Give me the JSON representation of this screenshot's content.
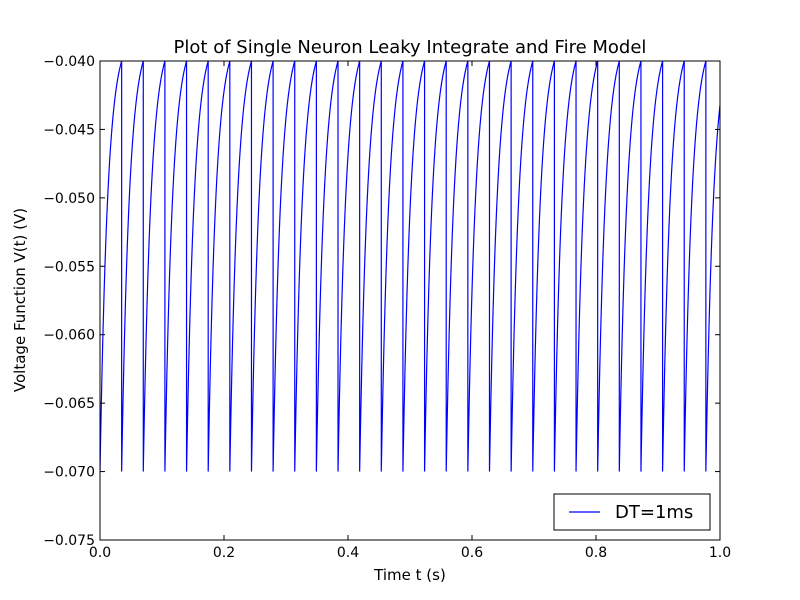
{
  "chart_data": {
    "type": "line",
    "title": "Plot of Single Neuron Leaky Integrate and Fire Model",
    "xlabel": "Time t (s)",
    "ylabel": "Voltage Function V(t) (V)",
    "xlim": [
      0.0,
      1.0
    ],
    "ylim": [
      -0.075,
      -0.04
    ],
    "x_ticks": [
      0.0,
      0.2,
      0.4,
      0.6,
      0.8,
      1.0
    ],
    "x_tick_labels": [
      "0.0",
      "0.2",
      "0.4",
      "0.6",
      "0.8",
      "1.0"
    ],
    "y_ticks": [
      -0.075,
      -0.07,
      -0.065,
      -0.06,
      -0.055,
      -0.05,
      -0.045,
      -0.04
    ],
    "y_tick_labels": [
      "−0.075",
      "−0.070",
      "−0.065",
      "−0.060",
      "−0.055",
      "−0.050",
      "−0.045",
      "−0.040"
    ],
    "grid": false,
    "legend_position": "lower-right",
    "series": [
      {
        "name": "DT=1ms",
        "color": "#0000ff",
        "model": {
          "v_reset": -0.07,
          "v_threshold": -0.04,
          "spike_period_s": 0.0349,
          "spike_count": 28,
          "tail_end_value": -0.0437
        }
      }
    ]
  }
}
